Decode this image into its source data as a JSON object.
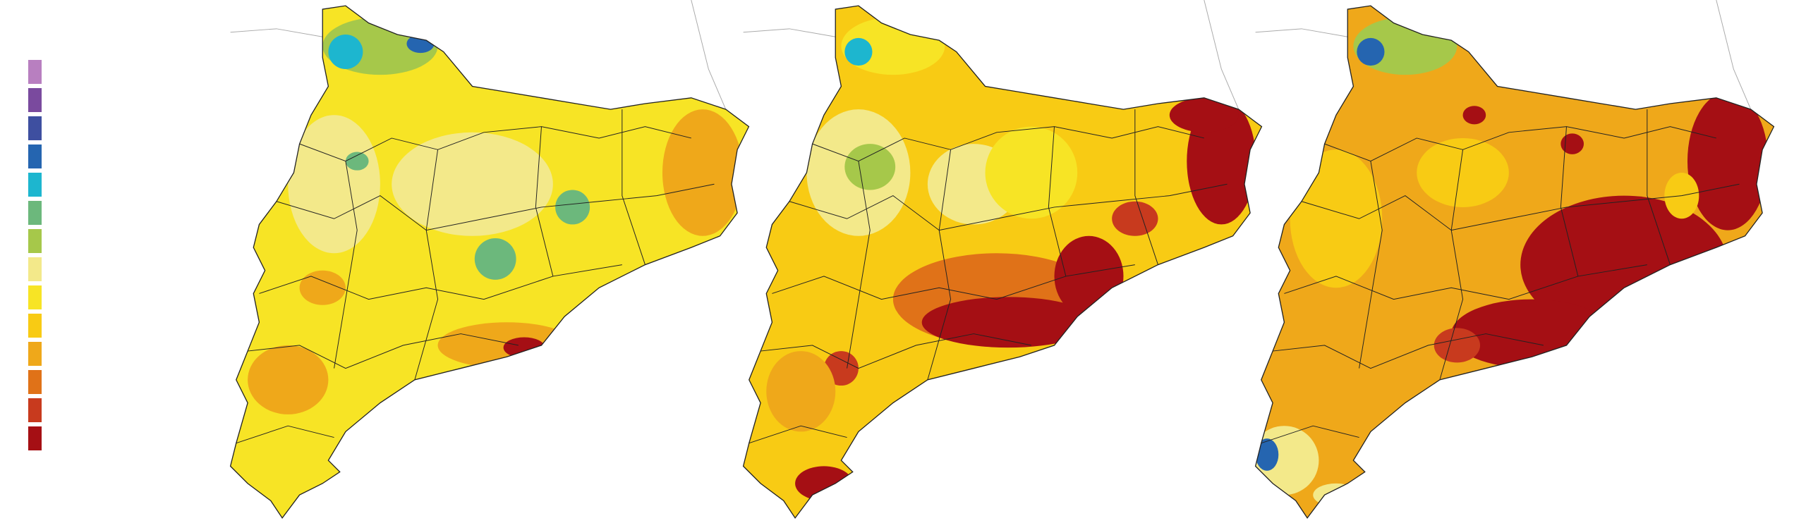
{
  "legend": {
    "colors": [
      "#b87fc0",
      "#7a4a9e",
      "#3e4fa0",
      "#2565b0",
      "#1db6cf",
      "#6cb87c",
      "#a6c84a",
      "#f3e98a",
      "#f7e425",
      "#f8cb14",
      "#efa81a",
      "#e07218",
      "#c83a1e",
      "#a50f14"
    ]
  }
}
